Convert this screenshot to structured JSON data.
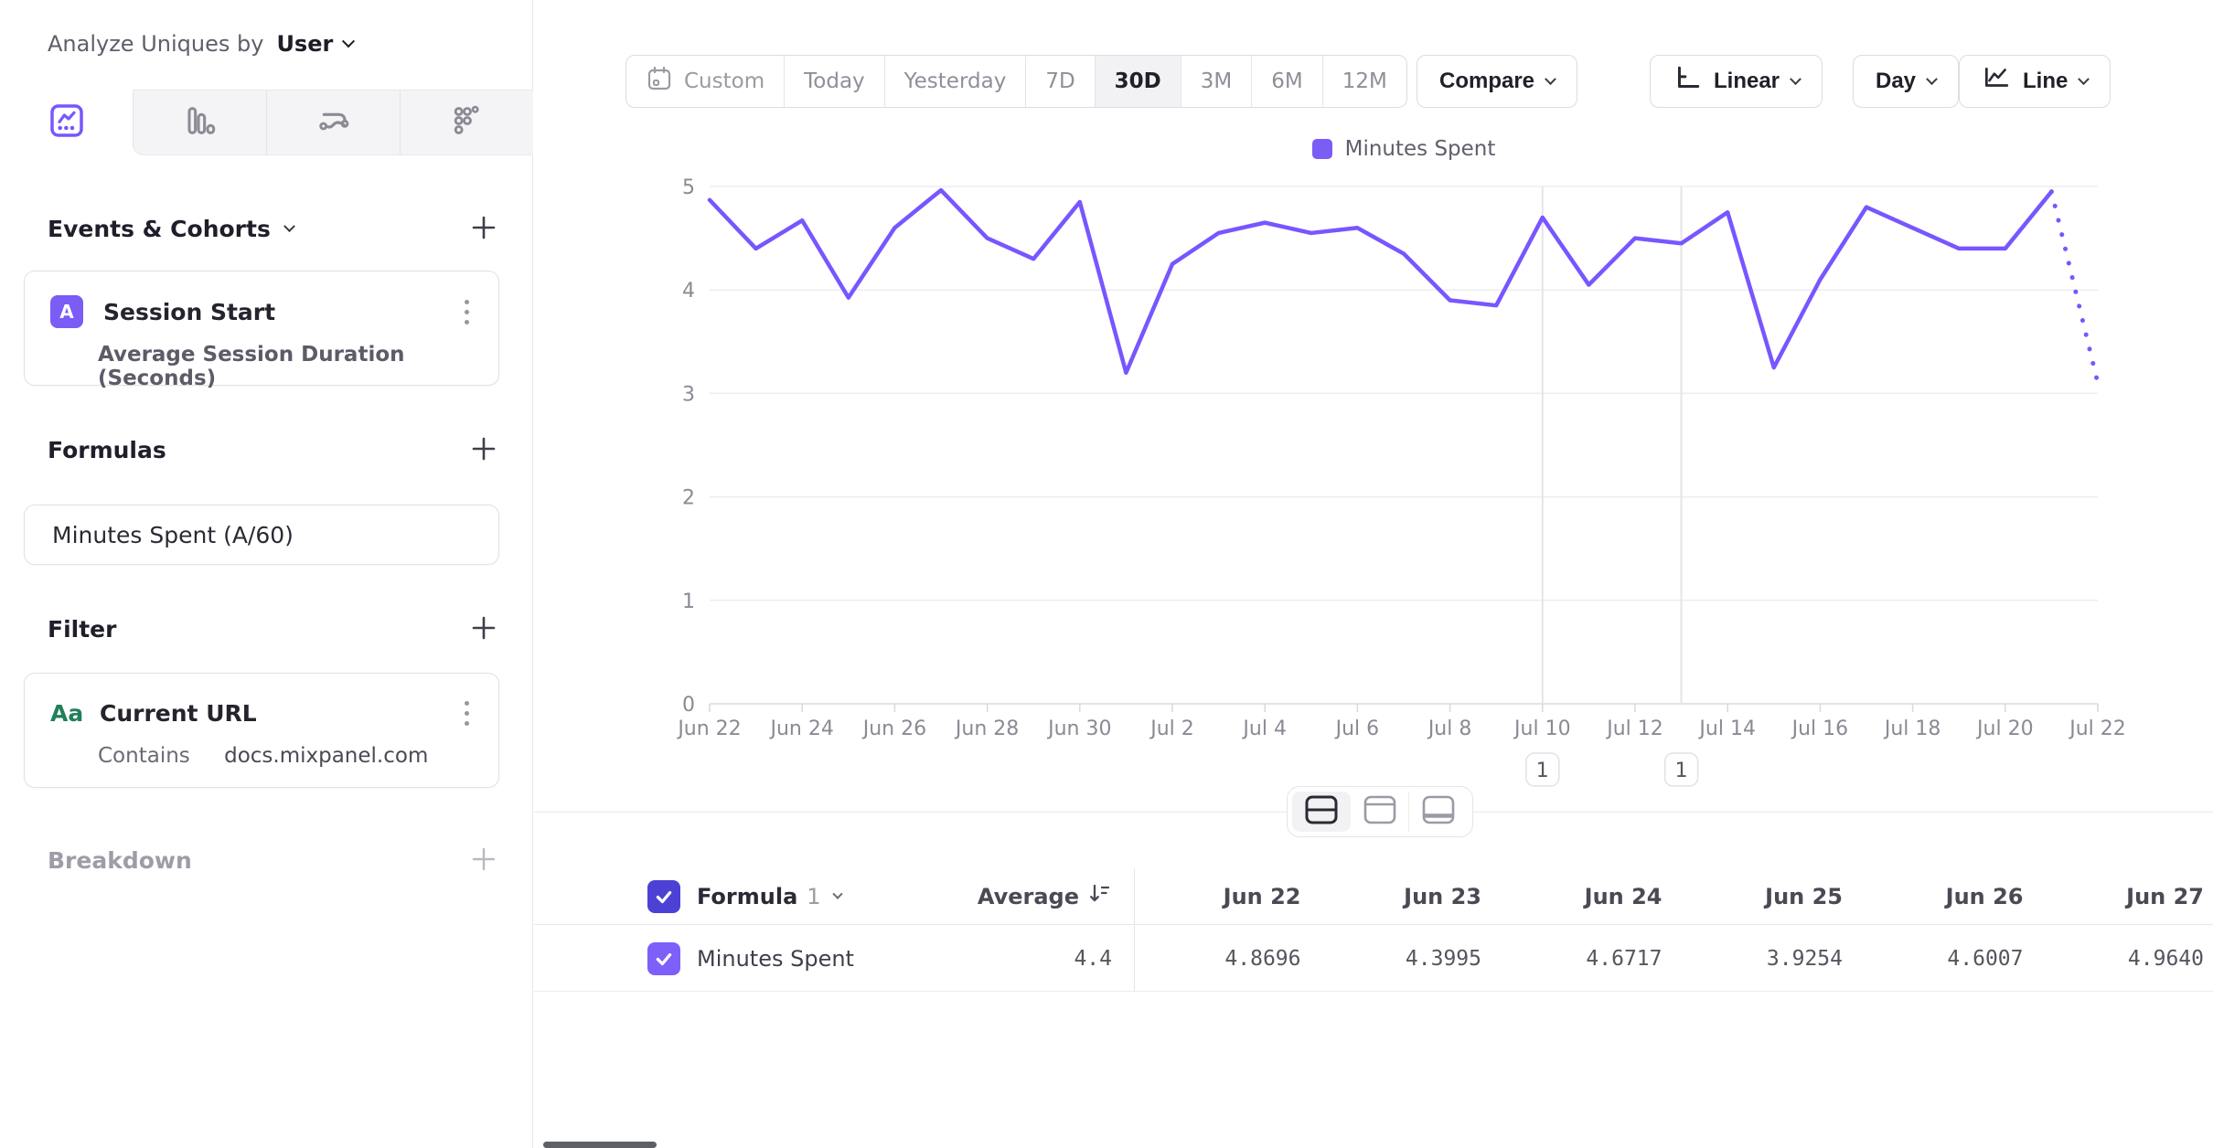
{
  "accent_color": "#7856ff",
  "sidebar": {
    "analyze": {
      "label": "Analyze Uniques by",
      "value": "User"
    },
    "tabs": [
      "insights-line",
      "bar",
      "flows",
      "retention"
    ],
    "events_section": {
      "title": "Events & Cohorts"
    },
    "event_card": {
      "badge": "A",
      "title": "Session Start",
      "subtitle": "Average Session Duration (Seconds)"
    },
    "formulas_section": {
      "title": "Formulas"
    },
    "formula_card": {
      "title": "Minutes Spent (A/60)"
    },
    "filter_section": {
      "title": "Filter"
    },
    "filter_card": {
      "badge": "Aa",
      "title": "Current URL",
      "operator": "Contains",
      "value": "docs.mixpanel.com"
    },
    "breakdown_section": {
      "title": "Breakdown"
    }
  },
  "toolbar": {
    "ranges": [
      "Custom",
      "Today",
      "Yesterday",
      "7D",
      "30D",
      "3M",
      "6M",
      "12M"
    ],
    "active_range": "30D",
    "compare": "Compare",
    "scale": "Linear",
    "granularity": "Day",
    "chart_type": "Line"
  },
  "chart_data": {
    "type": "line",
    "series_name": "Minutes Spent",
    "legend_position": "top",
    "line_color": "#7856ff",
    "ylim": [
      0,
      5
    ],
    "yticks": [
      0,
      1,
      2,
      3,
      4,
      5
    ],
    "x_tick_every": 2,
    "x": [
      "Jun 22",
      "Jun 23",
      "Jun 24",
      "Jun 25",
      "Jun 26",
      "Jun 27",
      "Jun 28",
      "Jun 29",
      "Jun 30",
      "Jul 1",
      "Jul 2",
      "Jul 3",
      "Jul 4",
      "Jul 5",
      "Jul 6",
      "Jul 7",
      "Jul 8",
      "Jul 9",
      "Jul 10",
      "Jul 11",
      "Jul 12",
      "Jul 13",
      "Jul 14",
      "Jul 15",
      "Jul 16",
      "Jul 17",
      "Jul 18",
      "Jul 19",
      "Jul 20",
      "Jul 21",
      "Jul 22"
    ],
    "values": [
      4.8696,
      4.3995,
      4.6717,
      3.9254,
      4.6007,
      4.964,
      4.5,
      4.3,
      4.85,
      3.2,
      4.25,
      4.55,
      4.65,
      4.55,
      4.6,
      4.35,
      3.9,
      3.85,
      4.7,
      4.05,
      4.5,
      4.45,
      4.75,
      3.25,
      4.1,
      4.8,
      4.6,
      4.4,
      4.4,
      4.95,
      3.1
    ],
    "dashed_tail_points": 1,
    "annotations": [
      {
        "x_index": 18,
        "label": "1"
      },
      {
        "x_index": 21,
        "label": "1"
      }
    ]
  },
  "table": {
    "group": {
      "label": "Formula",
      "index": "1"
    },
    "average_label": "Average",
    "columns": [
      "Jun 22",
      "Jun 23",
      "Jun 24",
      "Jun 25",
      "Jun 26",
      "Jun 27"
    ],
    "row": {
      "label": "Minutes Spent",
      "average": "4.4",
      "values": [
        "4.8696",
        "4.3995",
        "4.6717",
        "3.9254",
        "4.6007",
        "4.9640"
      ]
    }
  }
}
